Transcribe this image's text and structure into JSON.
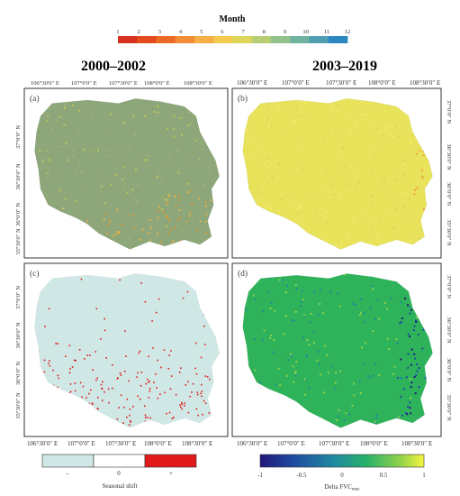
{
  "month_legend": {
    "title": "Month",
    "ticks": [
      "1",
      "2",
      "3",
      "4",
      "5",
      "6",
      "7",
      "8",
      "9",
      "10",
      "11",
      "12"
    ],
    "colors": [
      "#d7301f",
      "#e34a1c",
      "#ed6a26",
      "#f28c35",
      "#f5ae45",
      "#f2c94c",
      "#dcd65a",
      "#b6cf74",
      "#91c38c",
      "#6fb3a0",
      "#4f9fb1",
      "#2b87c0"
    ]
  },
  "periods": {
    "left": "2000–2002",
    "right": "2003–2019"
  },
  "axes": {
    "top_lon": [
      "106°30′0″ E",
      "107°0′0″ E",
      "107°30′0″ E",
      "108°0′0″ E",
      "108°30′0″ E"
    ],
    "bottom_lon": [
      "106°30′0″ E",
      "107°0′0″ E",
      "107°30′0″ E",
      "108°0′0″ E",
      "108°30′0″ E"
    ],
    "lat": [
      "37°0′0″ N",
      "36°30′0″ N",
      "36°0′0″ N",
      "35°30′0″ N"
    ]
  },
  "panels": [
    {
      "label": "(a)",
      "kind": "month",
      "base": "#8ea77a",
      "accent": "#e3b24a"
    },
    {
      "label": "(b)",
      "kind": "month",
      "base": "#e8e35b",
      "accent": "#f1a347"
    },
    {
      "label": "(c)",
      "kind": "shift",
      "base": "#cfe8e6",
      "accent": "#e01a1a"
    },
    {
      "label": "(d)",
      "kind": "delta",
      "base": "#2fb35a",
      "accent": "#1f4aa0"
    }
  ],
  "shift_legend": {
    "title": "Seasonal shift",
    "labels": [
      "–",
      "0",
      "+"
    ],
    "colors": [
      "#cfe8e6",
      "#ffffff",
      "#e01a1a"
    ]
  },
  "delta_legend": {
    "title": "Delta FVC",
    "title_sub": "max",
    "ticks": [
      "-1",
      "-0.5",
      "0",
      "0.5",
      "1"
    ],
    "colors": [
      "#22177a",
      "#1f4aa0",
      "#1f8aa0",
      "#27b26a",
      "#8fd14a",
      "#f5f542"
    ]
  }
}
